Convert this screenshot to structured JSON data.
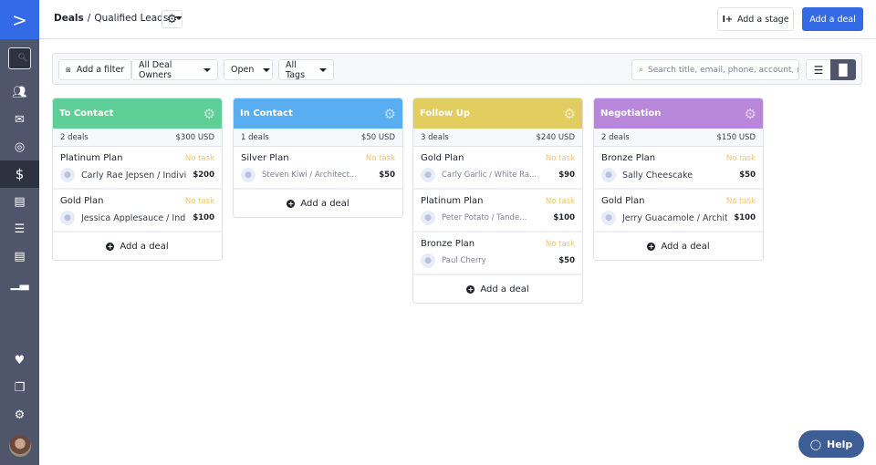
{
  "sidebar": {
    "items": [
      "search-icon",
      "contacts-icon",
      "email-icon",
      "automation-icon",
      "deals-icon",
      "conversations-icon",
      "lists-icon",
      "reports-icon",
      "analytics-icon",
      "favorites-icon",
      "pages-icon",
      "settings-icon"
    ],
    "active": "deals-icon"
  },
  "header": {
    "crumb_root": "Deals",
    "crumb_sep": "/",
    "pipeline": "Qualified Leads",
    "add_stage": "Add a stage",
    "add_deal": "Add a deal"
  },
  "filters": {
    "add_filter": "Add a filter",
    "owners": "All Deal Owners",
    "status": "Open",
    "tags": "All Tags",
    "search_placeholder": "Search title, email, phone, account, o"
  },
  "columns": [
    {
      "title": "To Contact",
      "color": "#5fcf98",
      "count": "2 deals",
      "total": "$300 USD",
      "deals": [
        {
          "title": "Platinum Plan",
          "task": "No task",
          "contact": "Carly Rae Jepsen / Individual",
          "amount": "$200"
        },
        {
          "title": "Gold Plan",
          "task": "No task",
          "contact": "Jessica Applesauce / Individual",
          "amount": "$100"
        }
      ]
    },
    {
      "title": "In Contact",
      "color": "#58aef0",
      "count": "1 deals",
      "total": "$50 USD",
      "deals": [
        {
          "title": "Silver Plan",
          "task": "No task",
          "contact": "Steven Kiwi / Architect...",
          "amount": "$50"
        }
      ]
    },
    {
      "title": "Follow Up",
      "color": "#e2cd5f",
      "count": "3 deals",
      "total": "$240 USD",
      "deals": [
        {
          "title": "Gold Plan",
          "task": "No task",
          "contact": "Carly Garlic / White Ra...",
          "amount": "$90"
        },
        {
          "title": "Platinum Plan",
          "task": "No task",
          "contact": "Peter Potato / Tande...",
          "amount": "$100"
        },
        {
          "title": "Bronze Plan",
          "task": "No task",
          "contact": "Paul Cherry",
          "amount": "$50"
        }
      ]
    },
    {
      "title": "Negotiation",
      "color": "#b987d9",
      "count": "2 deals",
      "total": "$150 USD",
      "deals": [
        {
          "title": "Bronze Plan",
          "task": "No task",
          "contact": "Sally Cheescake",
          "amount": "$50"
        },
        {
          "title": "Gold Plan",
          "task": "No task",
          "contact": "Jerry Guacamole / Architect's",
          "amount": "$100"
        }
      ]
    }
  ],
  "add_deal_label": "Add a deal",
  "help": "Help"
}
